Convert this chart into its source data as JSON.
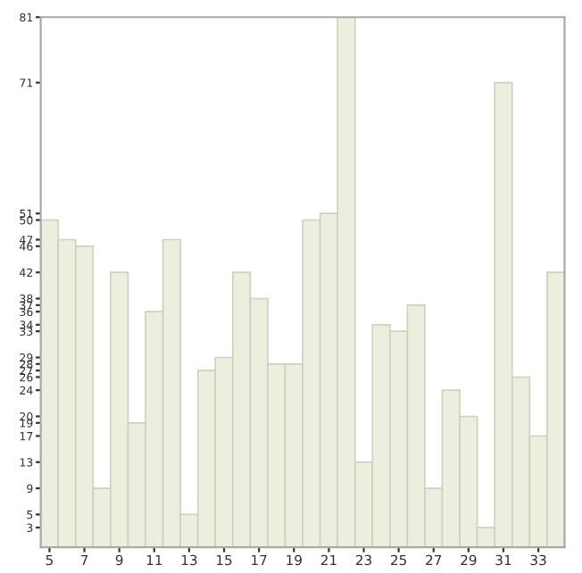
{
  "chart_data": {
    "type": "bar",
    "categories": [
      "5",
      null,
      "7",
      null,
      "9",
      null,
      "11",
      null,
      "13",
      null,
      "15",
      null,
      "17",
      null,
      "19",
      null,
      "21",
      null,
      "23",
      null,
      "25",
      null,
      "27",
      null,
      "29",
      null,
      "31",
      null,
      "33",
      null
    ],
    "values": [
      50,
      47,
      46,
      9,
      42,
      19,
      36,
      47,
      5,
      27,
      29,
      42,
      38,
      28,
      28,
      50,
      51,
      81,
      13,
      34,
      33,
      37,
      9,
      24,
      20,
      3,
      71,
      26,
      17,
      42
    ],
    "color": "#eeeedf",
    "ylim": [
      0,
      81
    ],
    "yticks": [
      3,
      5,
      9,
      13,
      17,
      19,
      20,
      24,
      26,
      27,
      28,
      29,
      33,
      34,
      36,
      37,
      38,
      42,
      46,
      47,
      50,
      51,
      71,
      81
    ],
    "grid": false,
    "legend": false
  }
}
